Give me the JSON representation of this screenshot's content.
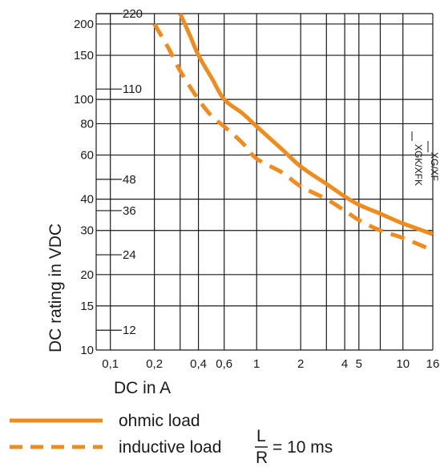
{
  "chart_data": {
    "type": "line",
    "xlabel": "DC in A",
    "ylabel": "DC rating in VDC",
    "x_scale": "log",
    "y_scale": "log",
    "xlim": [
      0.08,
      16
    ],
    "ylim": [
      10,
      220
    ],
    "grid": true,
    "x_ticks": [
      {
        "value": 0.1,
        "label": "0,1"
      },
      {
        "value": 0.2,
        "label": "0,2"
      },
      {
        "value": 0.4,
        "label": "0,4"
      },
      {
        "value": 0.6,
        "label": "0,6"
      },
      {
        "value": 1,
        "label": "1"
      },
      {
        "value": 2,
        "label": "2"
      },
      {
        "value": 4,
        "label": "4"
      },
      {
        "value": 5,
        "label": "5"
      },
      {
        "value": 10,
        "label": "10"
      },
      {
        "value": 16,
        "label": "16"
      }
    ],
    "x_grid_extra": [
      0.3,
      3,
      7
    ],
    "y_ticks_major": [
      {
        "value": 10,
        "label": "10"
      },
      {
        "value": 15,
        "label": "15"
      },
      {
        "value": 20,
        "label": "20"
      },
      {
        "value": 30,
        "label": "30"
      },
      {
        "value": 40,
        "label": "40"
      },
      {
        "value": 60,
        "label": "60"
      },
      {
        "value": 80,
        "label": "80"
      },
      {
        "value": 100,
        "label": "100"
      },
      {
        "value": 150,
        "label": "150"
      },
      {
        "value": 200,
        "label": "200"
      }
    ],
    "y_ticks_minor": [
      {
        "value": 12,
        "label": "12"
      },
      {
        "value": 24,
        "label": "24"
      },
      {
        "value": 36,
        "label": "36"
      },
      {
        "value": 48,
        "label": "48"
      },
      {
        "value": 110,
        "label": "110"
      },
      {
        "value": 220,
        "label": "220"
      }
    ],
    "series": [
      {
        "name": "ohmic load",
        "style": "solid",
        "color": "#f08c1e",
        "points": [
          [
            0.3,
            220
          ],
          [
            0.35,
            180
          ],
          [
            0.4,
            150
          ],
          [
            0.5,
            120
          ],
          [
            0.6,
            100
          ],
          [
            0.8,
            88
          ],
          [
            1.0,
            78
          ],
          [
            1.5,
            63
          ],
          [
            2.0,
            54
          ],
          [
            3.0,
            46
          ],
          [
            4.0,
            41
          ],
          [
            5.0,
            38
          ],
          [
            7.0,
            35
          ],
          [
            10.0,
            32
          ],
          [
            16.0,
            29
          ]
        ]
      },
      {
        "name": "inductive load",
        "style": "dashed",
        "color": "#f08c1e",
        "points": [
          [
            0.2,
            200
          ],
          [
            0.25,
            160
          ],
          [
            0.3,
            130
          ],
          [
            0.4,
            100
          ],
          [
            0.5,
            85
          ],
          [
            0.6,
            78
          ],
          [
            0.8,
            67
          ],
          [
            1.0,
            58
          ],
          [
            1.5,
            51
          ],
          [
            2.0,
            45
          ],
          [
            3.0,
            40
          ],
          [
            4.0,
            36
          ],
          [
            5.0,
            33
          ],
          [
            7.0,
            30
          ],
          [
            10.0,
            28
          ],
          [
            16.0,
            25
          ]
        ]
      }
    ],
    "annotation": {
      "labels": [
        "XGK/XFK",
        "XG/XF"
      ],
      "x": 12
    },
    "legend": {
      "placement": "bottom",
      "items": [
        {
          "label": "ohmic load",
          "style": "solid"
        },
        {
          "label": "inductive load",
          "style": "dashed",
          "formula_numerator": "L",
          "formula_denominator": "R",
          "formula_suffix": "= 10 ms"
        }
      ]
    }
  },
  "colors": {
    "line": "#f08c1e",
    "grid": "#1a1a1a",
    "text": "#1a1a1a"
  }
}
